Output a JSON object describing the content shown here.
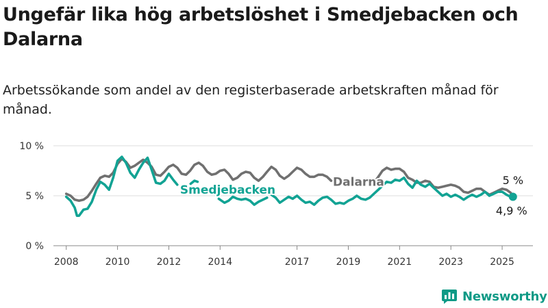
{
  "title": "Ungefär lika hög arbetslöshet i Smedjebacken och Dalarna",
  "subtitle": "Arbetssökande som andel av den registerbaserade arbetskraften månad för månad.",
  "brand": "Newsworthy",
  "colors": {
    "smedjebacken": "#12a394",
    "dalarna": "#707070",
    "grid": "#dcdcdc",
    "axis": "#888888",
    "text": "#333333"
  },
  "chart_data": {
    "type": "line",
    "y_unit": "%",
    "ylim": [
      0,
      10
    ],
    "y_ticks": [
      0,
      5,
      10
    ],
    "y_tick_labels": [
      "0 %",
      "5 %",
      "10 %"
    ],
    "xlim": [
      2007.5,
      2026.2
    ],
    "x_ticks": [
      2008,
      2010,
      2012,
      2014,
      2017,
      2019,
      2021,
      2023,
      2025
    ],
    "x_tick_labels": [
      "2008",
      "2010",
      "2012",
      "2014",
      "2017",
      "2019",
      "2021",
      "2023",
      "2025"
    ],
    "grid": true,
    "series": [
      {
        "name": "Dalarna",
        "end_label": "5 %",
        "points": [
          [
            2008.0,
            5.2
          ],
          [
            2008.17,
            5.0
          ],
          [
            2008.33,
            4.6
          ],
          [
            2008.5,
            4.5
          ],
          [
            2008.67,
            4.6
          ],
          [
            2008.83,
            4.9
          ],
          [
            2009.0,
            5.5
          ],
          [
            2009.17,
            6.2
          ],
          [
            2009.33,
            6.8
          ],
          [
            2009.5,
            7.0
          ],
          [
            2009.67,
            6.9
          ],
          [
            2009.83,
            7.3
          ],
          [
            2010.0,
            8.2
          ],
          [
            2010.17,
            8.7
          ],
          [
            2010.33,
            8.4
          ],
          [
            2010.5,
            7.8
          ],
          [
            2010.67,
            8.0
          ],
          [
            2010.83,
            8.3
          ],
          [
            2011.0,
            8.6
          ],
          [
            2011.17,
            8.3
          ],
          [
            2011.33,
            7.9
          ],
          [
            2011.5,
            7.1
          ],
          [
            2011.67,
            7.0
          ],
          [
            2011.83,
            7.4
          ],
          [
            2012.0,
            7.9
          ],
          [
            2012.17,
            8.1
          ],
          [
            2012.33,
            7.8
          ],
          [
            2012.5,
            7.2
          ],
          [
            2012.67,
            7.1
          ],
          [
            2012.83,
            7.5
          ],
          [
            2013.0,
            8.1
          ],
          [
            2013.17,
            8.3
          ],
          [
            2013.33,
            8.0
          ],
          [
            2013.5,
            7.4
          ],
          [
            2013.67,
            7.1
          ],
          [
            2013.83,
            7.2
          ],
          [
            2014.0,
            7.5
          ],
          [
            2014.17,
            7.6
          ],
          [
            2014.33,
            7.2
          ],
          [
            2014.5,
            6.6
          ],
          [
            2014.67,
            6.8
          ],
          [
            2014.83,
            7.2
          ],
          [
            2015.0,
            7.4
          ],
          [
            2015.17,
            7.3
          ],
          [
            2015.33,
            6.8
          ],
          [
            2015.5,
            6.5
          ],
          [
            2015.67,
            6.9
          ],
          [
            2015.83,
            7.4
          ],
          [
            2016.0,
            7.9
          ],
          [
            2016.17,
            7.6
          ],
          [
            2016.33,
            7.0
          ],
          [
            2016.5,
            6.7
          ],
          [
            2016.67,
            7.0
          ],
          [
            2016.83,
            7.4
          ],
          [
            2017.0,
            7.8
          ],
          [
            2017.17,
            7.6
          ],
          [
            2017.33,
            7.2
          ],
          [
            2017.5,
            6.9
          ],
          [
            2017.67,
            6.9
          ],
          [
            2017.83,
            7.1
          ],
          [
            2018.0,
            7.1
          ],
          [
            2018.17,
            6.9
          ],
          [
            2018.33,
            6.5
          ]
        ]
      },
      {
        "name": "Dalarna",
        "points": [
          [
            2019.9,
            6.2
          ],
          [
            2020.0,
            6.3
          ],
          [
            2020.17,
            6.9
          ],
          [
            2020.33,
            7.5
          ],
          [
            2020.5,
            7.8
          ],
          [
            2020.67,
            7.6
          ],
          [
            2020.83,
            7.7
          ],
          [
            2021.0,
            7.7
          ],
          [
            2021.17,
            7.4
          ],
          [
            2021.33,
            6.8
          ],
          [
            2021.5,
            6.6
          ],
          [
            2021.67,
            6.3
          ],
          [
            2021.83,
            6.3
          ],
          [
            2022.0,
            6.5
          ],
          [
            2022.17,
            6.4
          ],
          [
            2022.33,
            5.9
          ],
          [
            2022.5,
            5.8
          ],
          [
            2022.67,
            5.9
          ],
          [
            2022.83,
            6.0
          ],
          [
            2023.0,
            6.1
          ],
          [
            2023.17,
            6.0
          ],
          [
            2023.33,
            5.8
          ],
          [
            2023.5,
            5.4
          ],
          [
            2023.67,
            5.3
          ],
          [
            2023.83,
            5.5
          ],
          [
            2024.0,
            5.7
          ],
          [
            2024.17,
            5.7
          ],
          [
            2024.33,
            5.4
          ],
          [
            2024.5,
            5.1
          ],
          [
            2024.67,
            5.3
          ],
          [
            2024.83,
            5.5
          ],
          [
            2025.0,
            5.7
          ],
          [
            2025.17,
            5.6
          ],
          [
            2025.33,
            5.3
          ],
          [
            2025.42,
            5.0
          ]
        ]
      },
      {
        "name": "Smedjebacken",
        "end_label": "4,9 %",
        "points": [
          [
            2008.0,
            4.9
          ],
          [
            2008.17,
            4.5
          ],
          [
            2008.33,
            3.8
          ],
          [
            2008.42,
            3.0
          ],
          [
            2008.5,
            3.0
          ],
          [
            2008.67,
            3.6
          ],
          [
            2008.83,
            3.7
          ],
          [
            2009.0,
            4.4
          ],
          [
            2009.17,
            5.6
          ],
          [
            2009.33,
            6.4
          ],
          [
            2009.5,
            6.1
          ],
          [
            2009.67,
            5.6
          ],
          [
            2009.83,
            6.8
          ],
          [
            2010.0,
            8.5
          ],
          [
            2010.17,
            8.9
          ],
          [
            2010.33,
            8.3
          ],
          [
            2010.5,
            7.3
          ],
          [
            2010.67,
            6.8
          ],
          [
            2010.83,
            7.6
          ],
          [
            2011.0,
            8.3
          ],
          [
            2011.17,
            8.8
          ],
          [
            2011.33,
            7.6
          ],
          [
            2011.5,
            6.3
          ],
          [
            2011.67,
            6.2
          ],
          [
            2011.83,
            6.5
          ],
          [
            2012.0,
            7.2
          ],
          [
            2012.17,
            6.6
          ],
          [
            2012.33,
            6.1
          ]
        ]
      },
      {
        "name": "Smedjebacken",
        "points": [
          [
            2012.85,
            6.2
          ],
          [
            2013.0,
            6.5
          ],
          [
            2013.12,
            6.4
          ]
        ]
      },
      {
        "name": "Smedjebacken",
        "points": [
          [
            2013.95,
            4.7
          ],
          [
            2014.0,
            4.6
          ],
          [
            2014.17,
            4.3
          ],
          [
            2014.33,
            4.5
          ],
          [
            2014.5,
            4.9
          ],
          [
            2014.67,
            4.7
          ],
          [
            2014.83,
            4.6
          ],
          [
            2015.0,
            4.7
          ],
          [
            2015.17,
            4.5
          ],
          [
            2015.33,
            4.1
          ],
          [
            2015.5,
            4.4
          ],
          [
            2015.67,
            4.6
          ],
          [
            2015.83,
            4.8
          ]
        ]
      },
      {
        "name": "Smedjebacken",
        "points": [
          [
            2016.0,
            5.1
          ],
          [
            2016.17,
            4.8
          ],
          [
            2016.33,
            4.3
          ],
          [
            2016.5,
            4.6
          ],
          [
            2016.67,
            4.9
          ],
          [
            2016.83,
            4.7
          ],
          [
            2017.0,
            5.0
          ],
          [
            2017.17,
            4.6
          ],
          [
            2017.33,
            4.3
          ],
          [
            2017.5,
            4.4
          ],
          [
            2017.67,
            4.1
          ],
          [
            2017.83,
            4.5
          ],
          [
            2018.0,
            4.8
          ],
          [
            2018.17,
            4.9
          ],
          [
            2018.33,
            4.6
          ],
          [
            2018.5,
            4.2
          ],
          [
            2018.67,
            4.3
          ],
          [
            2018.83,
            4.2
          ],
          [
            2019.0,
            4.5
          ],
          [
            2019.17,
            4.7
          ],
          [
            2019.33,
            5.0
          ],
          [
            2019.5,
            4.7
          ],
          [
            2019.67,
            4.6
          ],
          [
            2019.83,
            4.8
          ],
          [
            2020.0,
            5.2
          ],
          [
            2020.17,
            5.6
          ],
          [
            2020.33,
            6.0
          ],
          [
            2020.5,
            6.4
          ],
          [
            2020.67,
            6.3
          ],
          [
            2020.83,
            6.6
          ],
          [
            2021.0,
            6.5
          ],
          [
            2021.17,
            6.8
          ],
          [
            2021.33,
            6.2
          ],
          [
            2021.5,
            5.8
          ],
          [
            2021.67,
            6.5
          ],
          [
            2021.83,
            6.1
          ],
          [
            2022.0,
            5.9
          ],
          [
            2022.17,
            6.2
          ],
          [
            2022.33,
            5.8
          ],
          [
            2022.5,
            5.4
          ],
          [
            2022.67,
            5.0
          ],
          [
            2022.83,
            5.2
          ],
          [
            2023.0,
            4.9
          ],
          [
            2023.17,
            5.1
          ],
          [
            2023.33,
            4.9
          ],
          [
            2023.5,
            4.6
          ],
          [
            2023.67,
            4.9
          ],
          [
            2023.83,
            5.1
          ],
          [
            2024.0,
            4.9
          ],
          [
            2024.17,
            5.1
          ],
          [
            2024.33,
            5.4
          ],
          [
            2024.5,
            5.0
          ],
          [
            2024.67,
            5.2
          ],
          [
            2024.83,
            5.4
          ],
          [
            2025.0,
            5.4
          ],
          [
            2025.17,
            5.1
          ],
          [
            2025.33,
            4.9
          ]
        ]
      }
    ],
    "series_labels": [
      {
        "name": "Smedjebacken",
        "x": 2014.3,
        "y": 5.2
      },
      {
        "name": "Dalarna",
        "x": 2019.4,
        "y": 6.0
      }
    ],
    "end_values": [
      {
        "name": "Dalarna",
        "label": "5 %",
        "x": 2025.42,
        "y": 5.0
      },
      {
        "name": "Smedjebacken",
        "label": "4,9 %",
        "x": 2025.42,
        "y": 4.9
      }
    ]
  }
}
